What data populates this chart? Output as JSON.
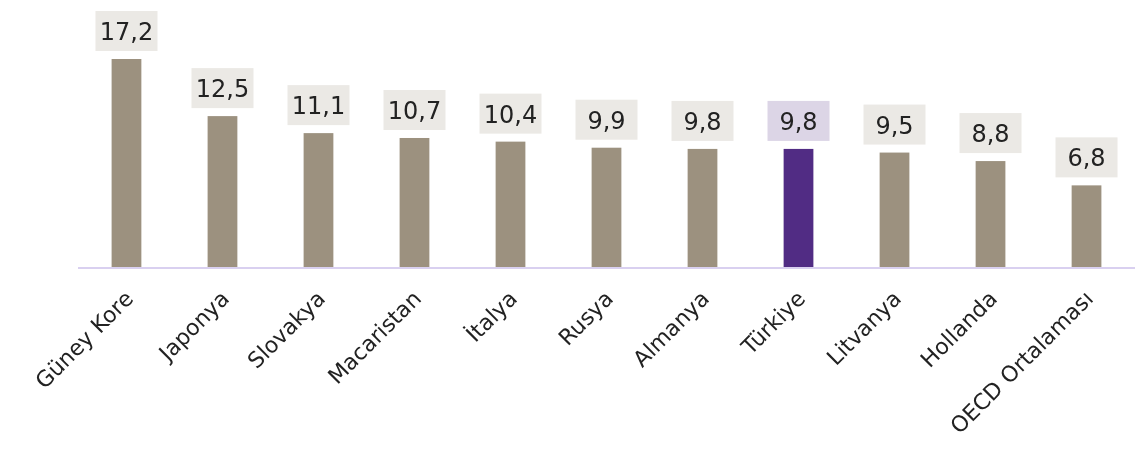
{
  "chart_data": {
    "type": "bar",
    "categories": [
      "Güney Kore",
      "Japonya",
      "Slovakya",
      "Macaristan",
      "İtalya",
      "Rusya",
      "Almanya",
      "Türkiye",
      "Litvanya",
      "Hollanda",
      "OECD Ortalaması"
    ],
    "values": [
      17.2,
      12.5,
      11.1,
      10.7,
      10.4,
      9.9,
      9.8,
      9.8,
      9.5,
      8.8,
      6.8
    ],
    "value_labels": [
      "17,2",
      "12,5",
      "11,1",
      "10,7",
      "10,4",
      "9,9",
      "9,8",
      "9,8",
      "9,5",
      "8,8",
      "6,8"
    ],
    "colors": [
      "#9c917f",
      "#9c917f",
      "#9c917f",
      "#9c917f",
      "#9c917f",
      "#9c917f",
      "#9c917f",
      "#512c84",
      "#9c917f",
      "#9c917f",
      "#9c917f"
    ]
  }
}
